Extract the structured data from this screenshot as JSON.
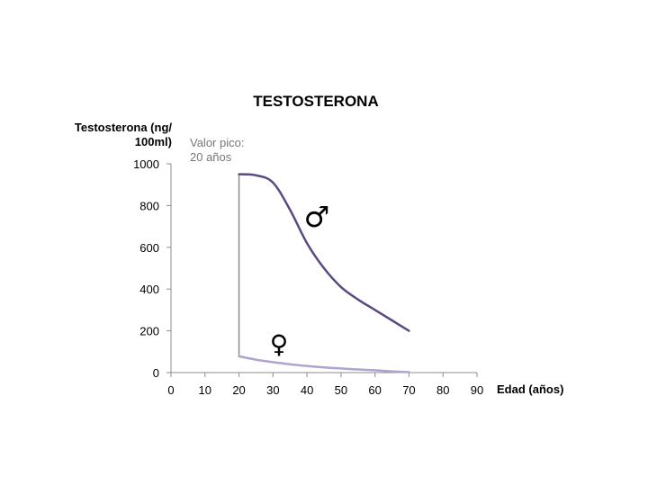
{
  "chart_data": {
    "type": "line",
    "title": "TESTOSTERONA",
    "ylabel_line1": "Testosterona (ng/",
    "ylabel_line2": "100ml)",
    "xlabel": "Edad (años)",
    "xlim": [
      0,
      90
    ],
    "ylim": [
      0,
      1000
    ],
    "xticks": [
      0,
      10,
      20,
      30,
      40,
      50,
      60,
      70,
      80,
      90
    ],
    "yticks": [
      0,
      200,
      400,
      600,
      800,
      1000
    ],
    "grid": false,
    "series": [
      {
        "name": "♂",
        "color": "#5b4a80",
        "x": [
          20,
          25,
          30,
          35,
          40,
          45,
          50,
          55,
          60,
          65,
          70
        ],
        "y": [
          950,
          945,
          910,
          780,
          620,
          500,
          410,
          350,
          300,
          250,
          200
        ]
      },
      {
        "name": "♀",
        "color": "#b0a4cf",
        "x": [
          20,
          25,
          30,
          35,
          40,
          45,
          50,
          55,
          60,
          65,
          70
        ],
        "y": [
          78,
          62,
          50,
          40,
          32,
          25,
          20,
          15,
          11,
          6,
          2
        ]
      }
    ],
    "annotation": {
      "line1": "Valor pico:",
      "line2": "20 años",
      "x": 20,
      "color": "#8c8c8c"
    }
  }
}
